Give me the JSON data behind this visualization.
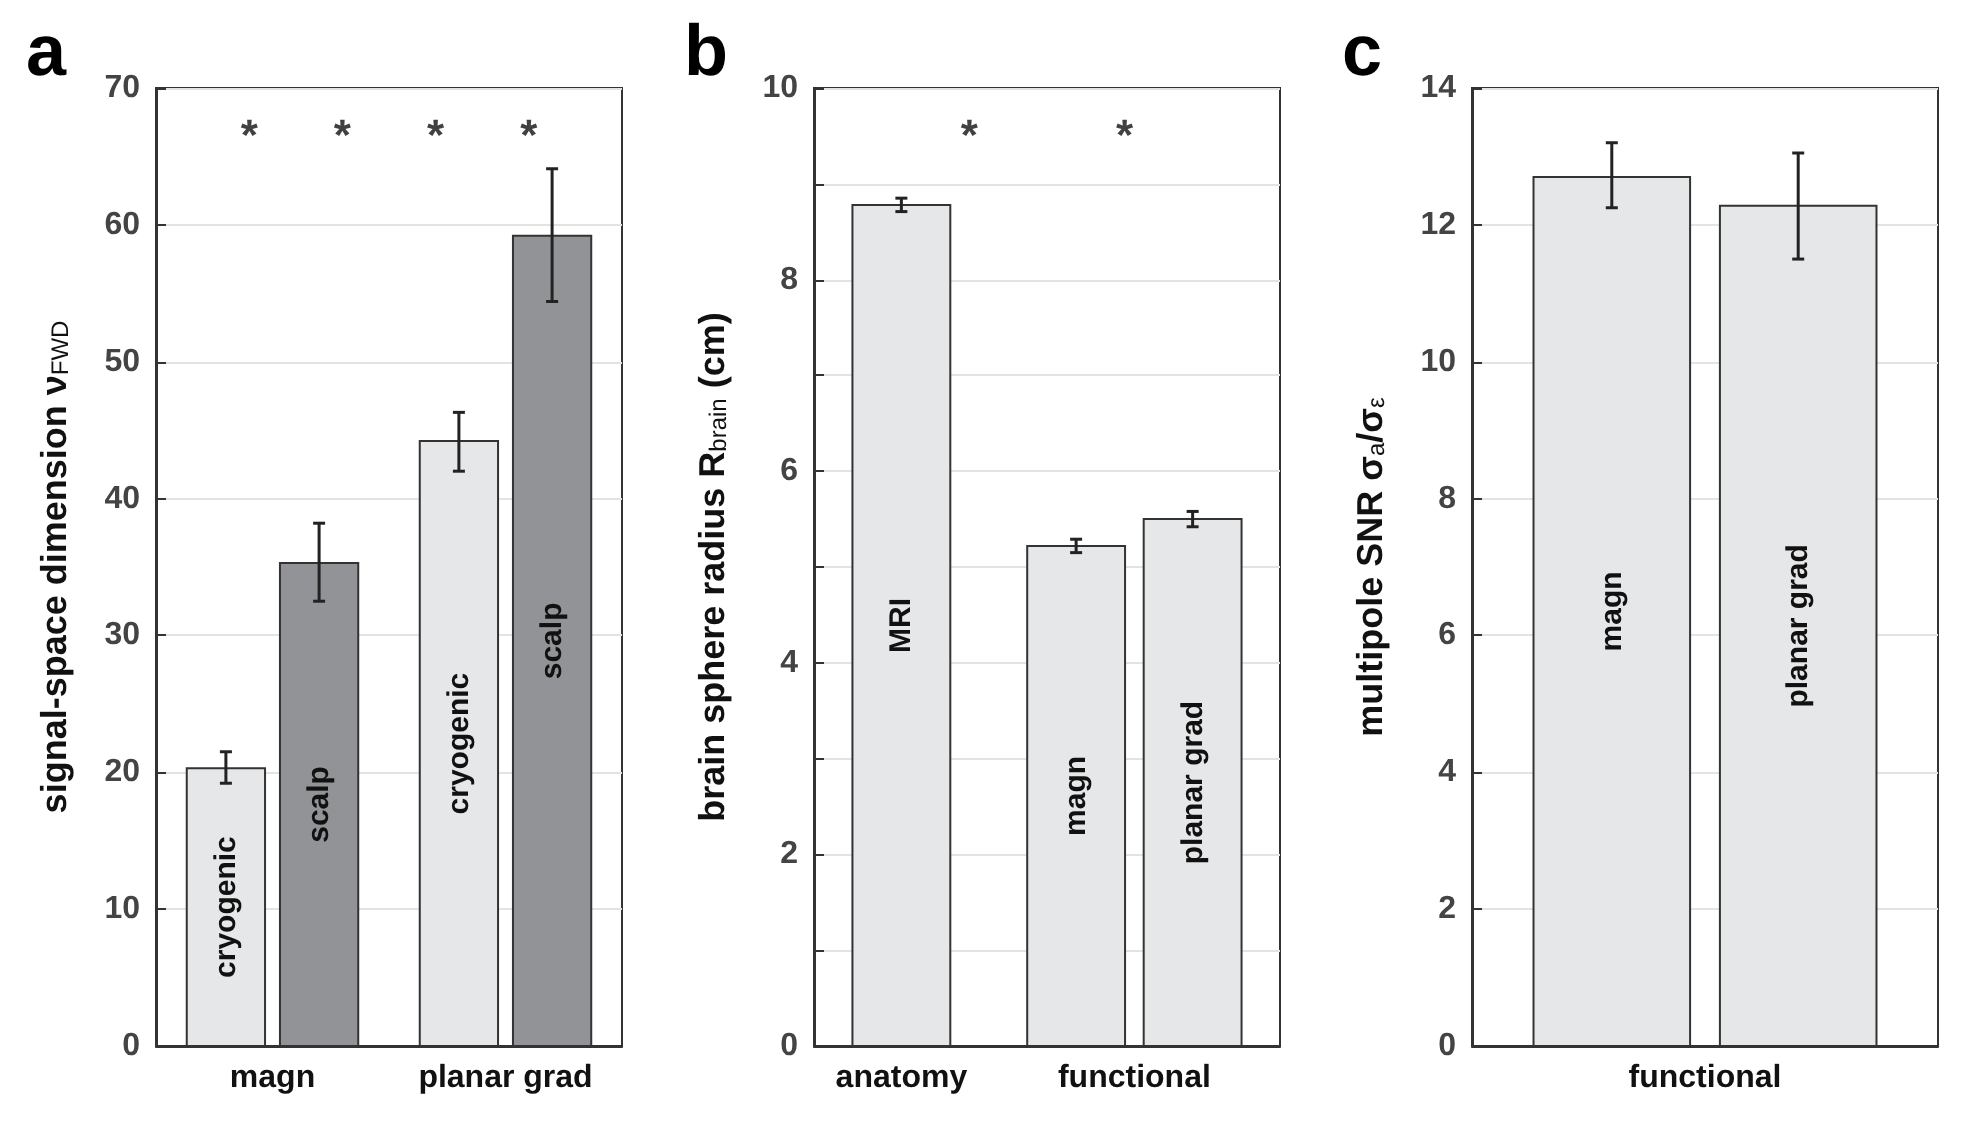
{
  "chart_data": [
    {
      "type": "bar",
      "title": "a",
      "ylabel": "signal-space dimension ν$_{FWD}$",
      "categories": [
        "magn",
        "planar grad"
      ],
      "series": [
        {
          "name": "cryogenic",
          "color": "#e6e7e9",
          "values": [
            20.3,
            44.2
          ],
          "errors": [
            [
              19.2,
              21.5
            ],
            [
              42.0,
              46.3
            ]
          ]
        },
        {
          "name": "scalp",
          "color": "#929396",
          "values": [
            35.3,
            59.2
          ],
          "errors": [
            [
              32.5,
              38.2
            ],
            [
              54.4,
              64.1
            ]
          ]
        }
      ],
      "ylim": [
        0,
        70
      ],
      "yticks": [
        0,
        10,
        20,
        30,
        40,
        50,
        60,
        70
      ],
      "grid": "y",
      "annotations": [
        "*",
        "*",
        "*",
        "*"
      ]
    },
    {
      "type": "bar",
      "title": "b",
      "ylabel": "brain sphere radius R$_{brain}$ (cm)",
      "categories": [
        "anatomy",
        "functional"
      ],
      "series": [
        {
          "name": "MRI",
          "color": "#e6e7e9",
          "values": [
            8.78,
            null
          ],
          "errors": [
            0.07,
            null
          ]
        },
        {
          "name": "magn",
          "color": "#e6e7e9",
          "values": [
            null,
            5.22
          ],
          "errors": [
            null,
            0.07
          ]
        },
        {
          "name": "planar grad",
          "color": "#e6e7e9",
          "values": [
            null,
            5.5
          ],
          "errors": [
            null,
            0.08
          ]
        }
      ],
      "ylim": [
        0,
        10
      ],
      "yticks": [
        0,
        {
          "value": 1,
          "label": null
        },
        2,
        {
          "value": 3,
          "label": null
        },
        4,
        {
          "value": 5,
          "label": null
        },
        6,
        {
          "value": 7,
          "label": null
        },
        8,
        {
          "value": 9,
          "label": null
        },
        10
      ],
      "grid": "y",
      "annotations": [
        "*",
        "*"
      ]
    },
    {
      "type": "bar",
      "title": "c",
      "ylabel": "multipole SNR σ$_{a}$/σ$_{ε}$",
      "categories": [
        "functional"
      ],
      "series": [
        {
          "name": "magn",
          "color": "#e6e7e9",
          "values": [
            12.7
          ],
          "errors": [
            [
              12.25,
              13.2
            ]
          ]
        },
        {
          "name": "planar grad",
          "color": "#e6e7e9",
          "values": [
            12.28
          ],
          "errors": [
            [
              11.5,
              13.05
            ]
          ]
        }
      ],
      "ylim": [
        0,
        14
      ],
      "yticks": [
        0,
        2,
        4,
        6,
        8,
        10,
        12,
        14
      ],
      "grid": "y"
    }
  ]
}
